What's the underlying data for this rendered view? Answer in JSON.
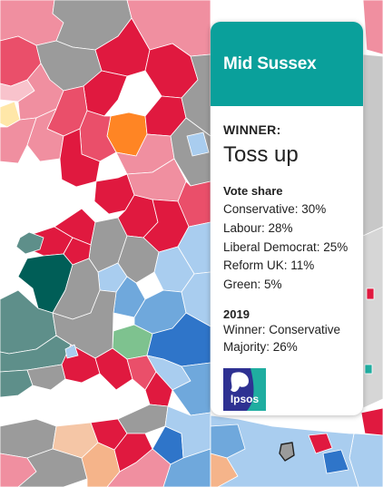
{
  "tooltip": {
    "constituency": "Mid Sussex",
    "winner_label": "WINNER:",
    "winner_value": "Toss up",
    "vote_share_label": "Vote share",
    "vote_share": [
      {
        "text": "Conservative: 30%"
      },
      {
        "text": "Labour: 28%"
      },
      {
        "text": "Liberal Democrat: 25%"
      },
      {
        "text": "Reform UK: 11%"
      },
      {
        "text": "Green: 5%"
      }
    ],
    "history_label": "2019",
    "history_winner": "Winner: Conservative",
    "history_majority": "Majority: 26%",
    "logo_text": "Ipsos"
  },
  "colors": {
    "header": "#0aa09b",
    "conservative_safe": "#2f75c9",
    "conservative_lean": "#a9cdef",
    "labour_safe": "#e0193f",
    "labour_lean": "#ef6e82",
    "toss_up": "#9b9b9b",
    "plaid": "#005e57",
    "lib_dem": "#ff8524",
    "green": "#7ec28f",
    "logo_blue": "#2e3192",
    "logo_teal": "#1fada0"
  }
}
